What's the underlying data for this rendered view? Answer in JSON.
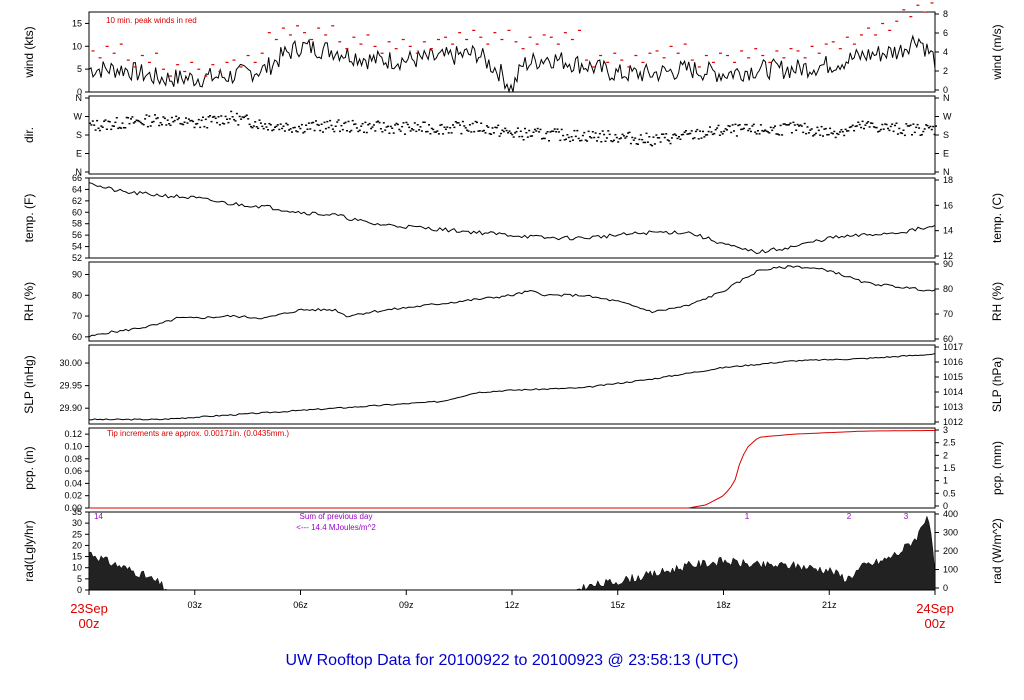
{
  "caption": "UW Rooftop Data for 20100922  to  20100923 @ 23:58:13  (UTC)",
  "time_axis": {
    "ticks": [
      "03z",
      "06z",
      "09z",
      "12z",
      "15z",
      "18z",
      "21z"
    ],
    "start_label": [
      "23Sep",
      "00z"
    ],
    "end_label": [
      "24Sep",
      "00z"
    ],
    "range_hours": [
      0,
      24
    ]
  },
  "colors": {
    "line": "#000000",
    "accent": "#dd0000",
    "purple": "#9900cc",
    "caption": "#0000cc"
  },
  "chart_data": [
    {
      "type": "line",
      "panel": "wind",
      "ylabel": "wind (kts)",
      "ylabel_right": "wind (m/s)",
      "ylim": [
        0,
        17.5
      ],
      "yticks": [
        "0",
        "5",
        "10",
        "15"
      ],
      "yticks_right": [
        "0",
        "2",
        "4",
        "6",
        "8"
      ],
      "annotation": "10 min. peak winds in red",
      "series": [
        {
          "x": [
            0,
            1,
            2,
            3,
            4,
            5,
            5.5,
            6,
            7,
            8,
            9,
            10,
            11,
            11.7,
            12,
            12.3,
            13,
            14,
            15,
            16,
            17,
            18,
            19,
            20,
            21,
            22,
            23,
            23.5,
            24
          ],
          "values": [
            5,
            5,
            3,
            3,
            3.5,
            5,
            8,
            10,
            9,
            7,
            7,
            7.5,
            8.5,
            4,
            0.5,
            6,
            7.5,
            6,
            4,
            4,
            5,
            4,
            5,
            5,
            6,
            8,
            9,
            12,
            7
          ]
        }
      ],
      "peaks": {
        "x": [
          0.5,
          1.5,
          2.5,
          3.5,
          4.5,
          5.5,
          6.5,
          7.5,
          8.5,
          9.5,
          10.5,
          11.5,
          12.5,
          13.5,
          14.5,
          15.5,
          16.5,
          17.5,
          18.5,
          19.5,
          20.5,
          21.5,
          22.5,
          23.5
        ],
        "values": [
          9,
          7,
          5,
          5,
          7,
          13,
          13,
          11,
          10,
          10,
          12,
          12,
          11,
          12,
          7,
          7,
          9,
          7,
          8,
          8,
          9,
          11,
          14,
          18
        ]
      }
    },
    {
      "type": "scatter",
      "panel": "direction",
      "ylabel": "dir.",
      "yticks": [
        "N",
        "E",
        "S",
        "W",
        "N"
      ],
      "ylim": [
        0,
        360
      ],
      "x": [
        0,
        1,
        2,
        3,
        4,
        5,
        6,
        7,
        8,
        9,
        10,
        11,
        12,
        13,
        14,
        15,
        16,
        17,
        18,
        19,
        20,
        21,
        22,
        23,
        24
      ],
      "y": [
        225,
        240,
        255,
        235,
        265,
        230,
        220,
        225,
        220,
        215,
        215,
        220,
        190,
        185,
        180,
        175,
        160,
        180,
        205,
        205,
        215,
        195,
        225,
        210,
        210
      ]
    },
    {
      "type": "line",
      "panel": "temperature",
      "ylabel": "temp. (F)",
      "ylabel_right": "temp. (C)",
      "ylim": [
        52,
        66
      ],
      "yticks": [
        "52",
        "54",
        "56",
        "58",
        "60",
        "62",
        "64",
        "66"
      ],
      "yticks_right": [
        "12",
        "14",
        "16",
        "18"
      ],
      "x": [
        0,
        0.3,
        1,
        2,
        3,
        4,
        5,
        6,
        7,
        8,
        9,
        10,
        11,
        12,
        13,
        14,
        15,
        16,
        17,
        18,
        18.5,
        19,
        20,
        21,
        22,
        23,
        24
      ],
      "values": [
        65.5,
        64.5,
        63.5,
        63,
        62.5,
        61.5,
        61,
        60,
        59.5,
        58,
        57.5,
        57,
        56.5,
        56,
        55.5,
        55.5,
        56,
        56.5,
        56.5,
        54.5,
        53.5,
        53,
        54,
        55.5,
        56,
        56.5,
        57.5
      ]
    },
    {
      "type": "line",
      "panel": "relative-humidity",
      "ylabel": "RH (%)",
      "ylabel_right": "RH (%)",
      "ylim": [
        58,
        96
      ],
      "yticks": [
        "60",
        "70",
        "80",
        "90"
      ],
      "yticks_right": [
        "60",
        "70",
        "80",
        "90"
      ],
      "x": [
        0,
        0.5,
        1,
        2,
        2.5,
        3,
        4,
        5,
        6,
        7,
        7.3,
        8,
        9,
        10,
        11,
        12,
        12.5,
        13,
        14,
        15,
        16,
        17,
        18,
        19,
        20,
        21,
        22,
        23,
        24
      ],
      "values": [
        60,
        62,
        63,
        66,
        69,
        69,
        70,
        69,
        73,
        73,
        70,
        72,
        74,
        76,
        78,
        80,
        82,
        80,
        80,
        77,
        72,
        75,
        82,
        92,
        94,
        92,
        86,
        84,
        82
      ]
    },
    {
      "type": "line",
      "panel": "sea-level-pressure",
      "ylabel": "SLP (inHg)",
      "ylabel_right": "SLP (hPa)",
      "ylim": [
        29.865,
        30.04
      ],
      "yticks": [
        "29.90",
        "29.95",
        "30.00"
      ],
      "yticks_right": [
        "1012",
        "1013",
        "1014",
        "1015",
        "1016",
        "1017"
      ],
      "x": [
        0,
        2,
        4,
        6,
        8,
        10,
        11,
        12,
        14,
        16,
        18,
        20,
        22,
        24
      ],
      "values": [
        29.875,
        29.875,
        29.885,
        29.895,
        29.905,
        29.915,
        29.935,
        29.94,
        29.945,
        29.965,
        29.99,
        30.005,
        30.01,
        30.02
      ]
    },
    {
      "type": "line",
      "panel": "precipitation",
      "ylabel": "pcp. (in)",
      "ylabel_right": "pcp. (mm)",
      "ylim": [
        0,
        0.13
      ],
      "yticks": [
        "0.00",
        "0.02",
        "0.04",
        "0.06",
        "0.08",
        "0.10",
        "0.12"
      ],
      "yticks_right": [
        "0",
        "0.5",
        "1",
        "1.5",
        "2",
        "2.5",
        "3"
      ],
      "annotation": "Tip increments are approx. 0.00171in. (0.0435mm.)",
      "x": [
        0,
        17,
        17.5,
        18,
        18.3,
        18.5,
        18.7,
        19,
        20,
        22,
        24
      ],
      "values": [
        0,
        0,
        0.005,
        0.02,
        0.04,
        0.08,
        0.1,
        0.115,
        0.12,
        0.125,
        0.126
      ]
    },
    {
      "type": "area",
      "panel": "solar-radiation",
      "ylabel": "rad(Lgly/hr)",
      "ylabel_right": "rad (W/m^2)",
      "ylim": [
        0,
        35
      ],
      "yticks": [
        "0",
        "5",
        "10",
        "15",
        "20",
        "25",
        "30",
        "35"
      ],
      "yticks_right": [
        "0",
        "100",
        "200",
        "300",
        "400"
      ],
      "day_labels": [
        "14",
        "1",
        "2",
        "3"
      ],
      "sum_note": [
        "Sum of previous day",
        "<--- 14.4 MJoules/m^2"
      ],
      "x": [
        0,
        0.5,
        1,
        1.5,
        2,
        2.2,
        13.8,
        14,
        15,
        16,
        16.5,
        17,
        17.5,
        18,
        18.5,
        19,
        20,
        21,
        21.5,
        22,
        22.5,
        23,
        23.5,
        23.8,
        24
      ],
      "values": [
        17,
        13,
        10,
        7,
        3,
        0,
        0,
        1,
        4,
        7,
        9,
        11,
        12,
        13,
        12,
        11,
        11,
        9,
        5,
        11,
        13,
        17,
        24,
        35,
        8
      ]
    }
  ]
}
